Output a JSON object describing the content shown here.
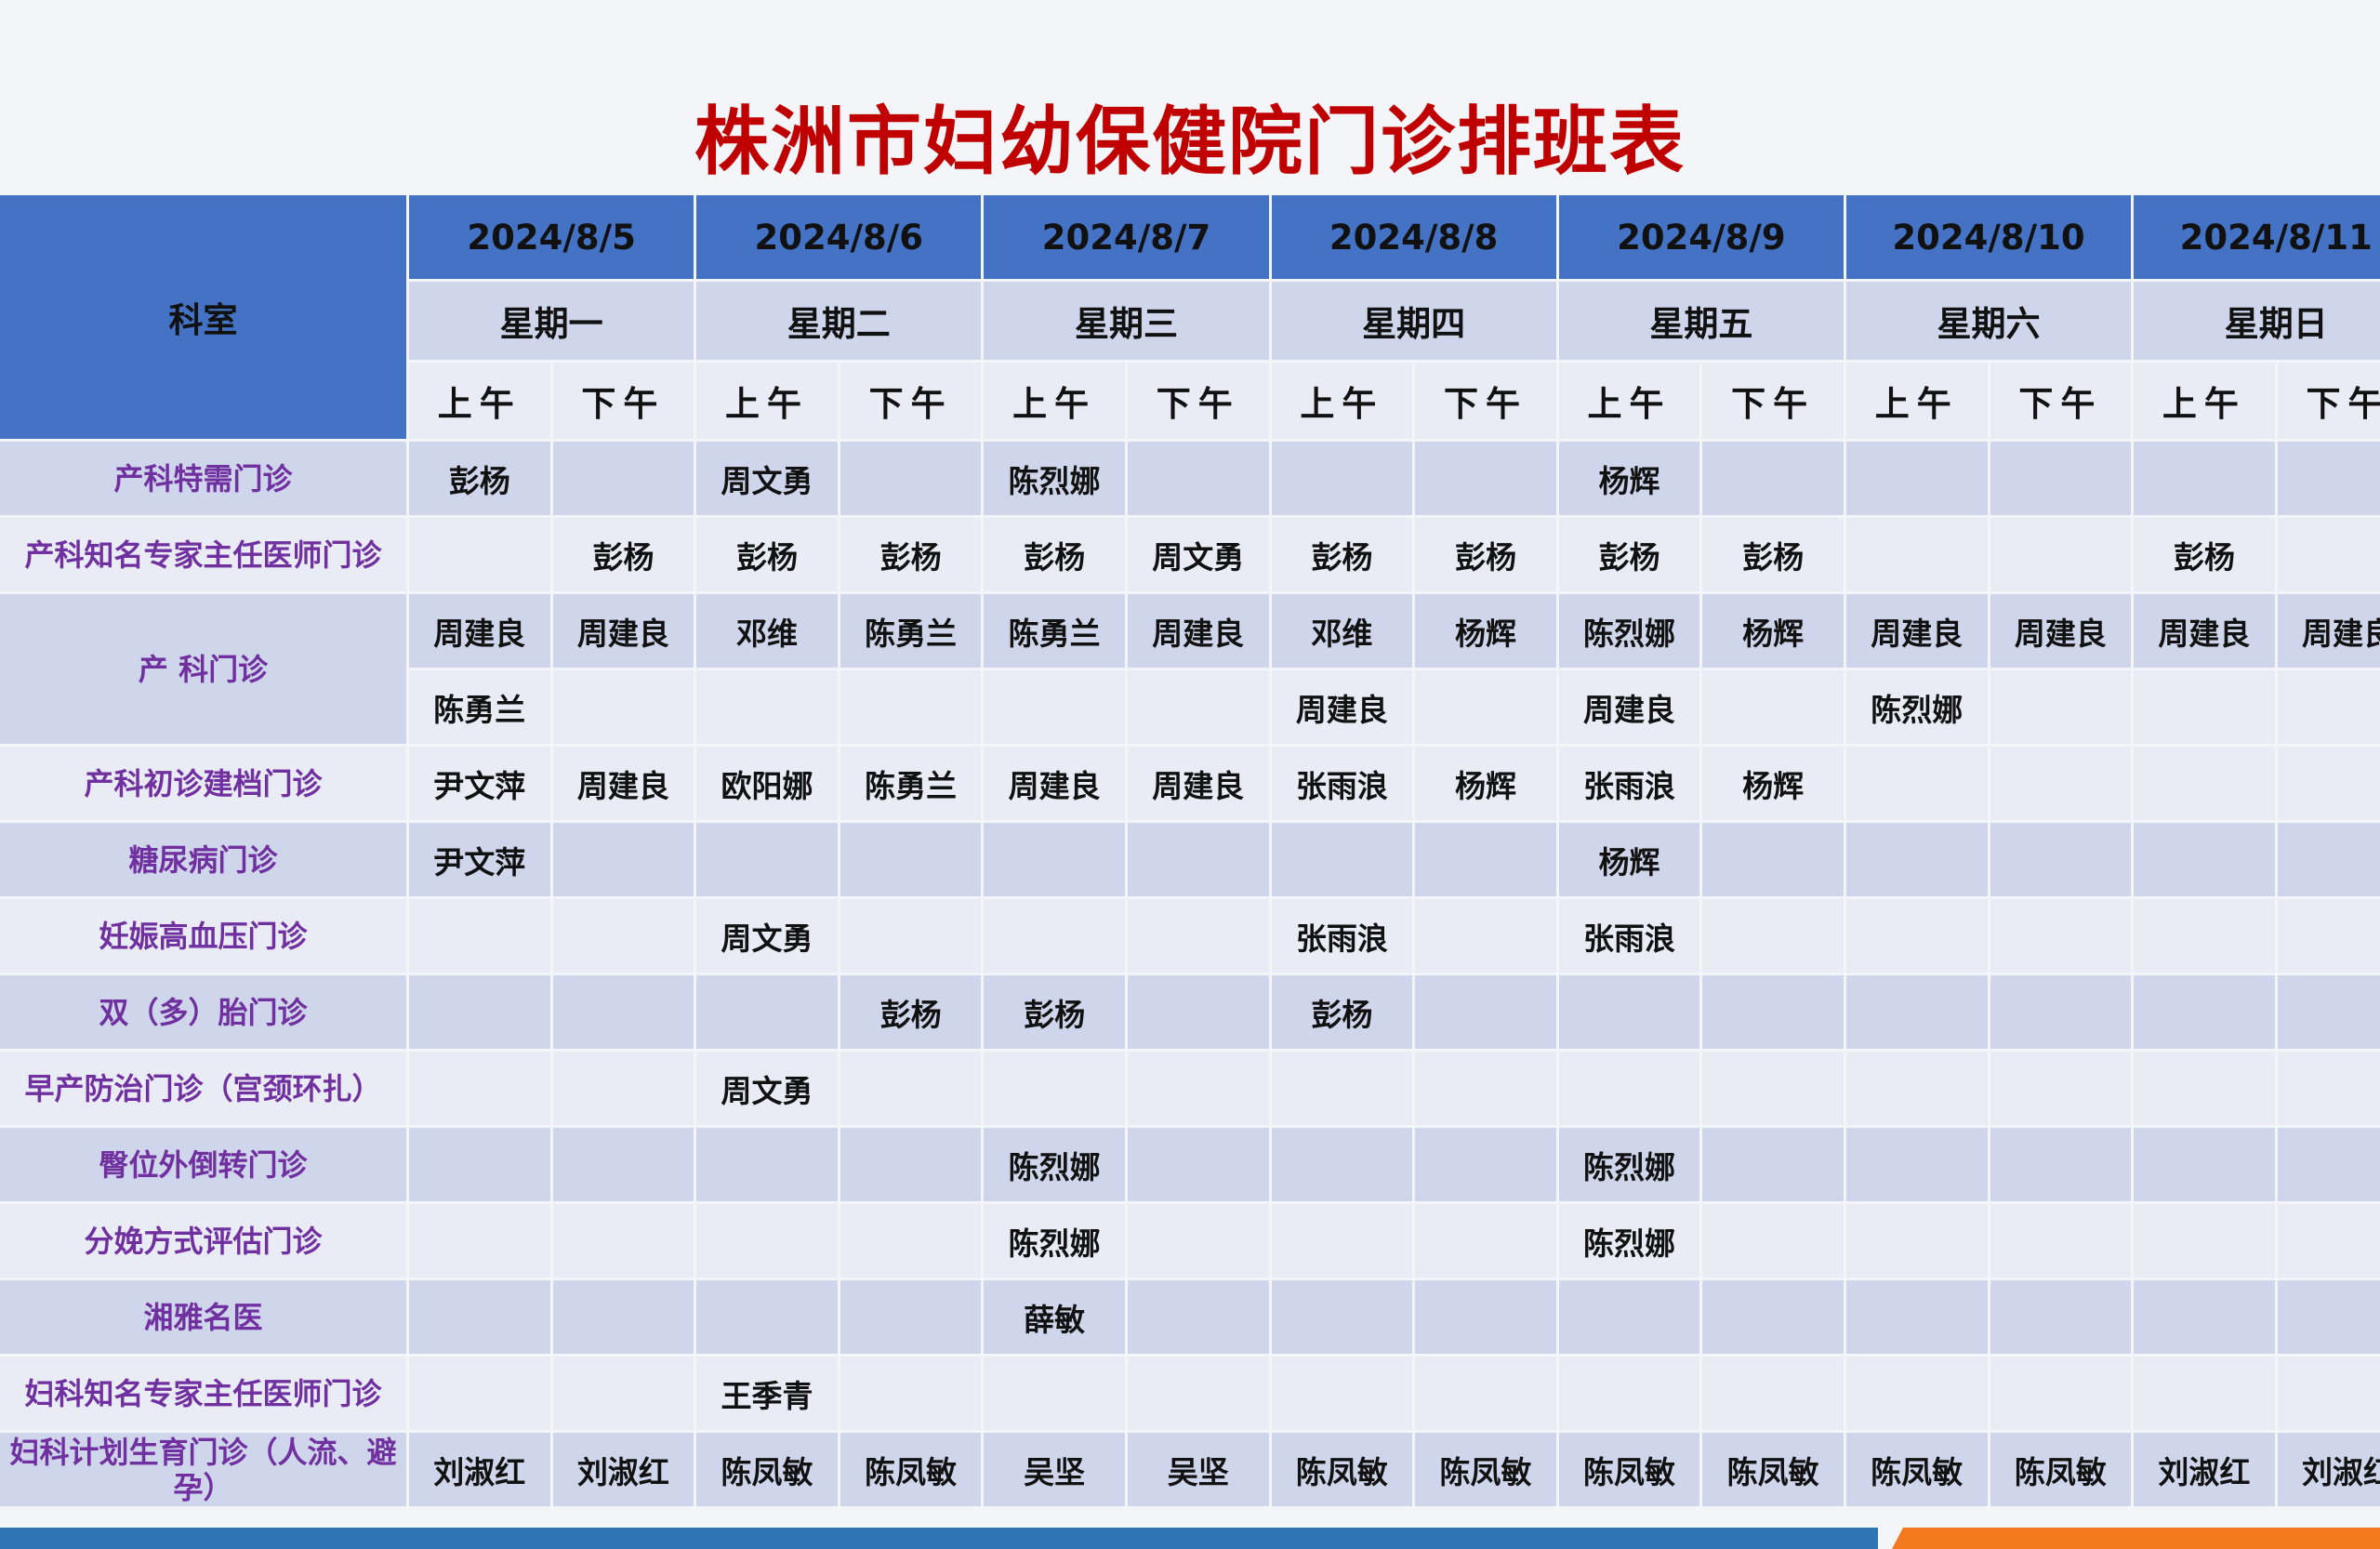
{
  "title": "株洲市妇幼保健院门诊排班表",
  "header": {
    "dept_label": "科室",
    "dates": [
      "2024/8/5",
      "2024/8/6",
      "2024/8/7",
      "2024/8/8",
      "2024/8/9",
      "2024/8/10",
      "2024/8/11"
    ],
    "weekdays": [
      "星期一",
      "星期二",
      "星期三",
      "星期四",
      "星期五",
      "星期六",
      "星期日"
    ],
    "am": "上午",
    "pm": "下午"
  },
  "rows": [
    {
      "dept": "产科特需门诊",
      "lines": [
        [
          "彭杨",
          "",
          "周文勇",
          "",
          "陈烈娜",
          "",
          "",
          "",
          "杨辉",
          "",
          "",
          "",
          "",
          ""
        ]
      ]
    },
    {
      "dept": "产科知名专家主任医师门诊",
      "lines": [
        [
          "",
          "彭杨",
          "彭杨",
          "彭杨",
          "彭杨",
          "周文勇",
          "彭杨",
          "彭杨",
          "彭杨",
          "彭杨",
          "",
          "",
          "彭杨",
          ""
        ]
      ]
    },
    {
      "dept": "产 科门诊",
      "lines": [
        [
          "周建良",
          "周建良",
          "邓维",
          "陈勇兰",
          "陈勇兰",
          "周建良",
          "邓维",
          "杨辉",
          "陈烈娜",
          "杨辉",
          "周建良",
          "周建良",
          "周建良",
          "周建良"
        ],
        [
          "陈勇兰",
          "",
          "",
          "",
          "",
          "",
          "周建良",
          "",
          "周建良",
          "",
          "陈烈娜",
          "",
          "",
          ""
        ]
      ]
    },
    {
      "dept": "产科初诊建档门诊",
      "lines": [
        [
          "尹文萍",
          "周建良",
          "欧阳娜",
          "陈勇兰",
          "周建良",
          "周建良",
          "张雨浪",
          "杨辉",
          "张雨浪",
          "杨辉",
          "",
          "",
          "",
          ""
        ]
      ]
    },
    {
      "dept": "糖尿病门诊",
      "lines": [
        [
          "尹文萍",
          "",
          "",
          "",
          "",
          "",
          "",
          "",
          "杨辉",
          "",
          "",
          "",
          "",
          ""
        ]
      ]
    },
    {
      "dept": "妊娠高血压门诊",
      "lines": [
        [
          "",
          "",
          "周文勇",
          "",
          "",
          "",
          "张雨浪",
          "",
          "张雨浪",
          "",
          "",
          "",
          "",
          ""
        ]
      ]
    },
    {
      "dept": "双（多）胎门诊",
      "lines": [
        [
          "",
          "",
          "",
          "彭杨",
          "彭杨",
          "",
          "彭杨",
          "",
          "",
          "",
          "",
          "",
          "",
          ""
        ]
      ]
    },
    {
      "dept": "早产防治门诊（宫颈环扎）",
      "lines": [
        [
          "",
          "",
          "周文勇",
          "",
          "",
          "",
          "",
          "",
          "",
          "",
          "",
          "",
          "",
          ""
        ]
      ]
    },
    {
      "dept": "臀位外倒转门诊",
      "lines": [
        [
          "",
          "",
          "",
          "",
          "陈烈娜",
          "",
          "",
          "",
          "陈烈娜",
          "",
          "",
          "",
          "",
          ""
        ]
      ]
    },
    {
      "dept": "分娩方式评估门诊",
      "lines": [
        [
          "",
          "",
          "",
          "",
          "陈烈娜",
          "",
          "",
          "",
          "陈烈娜",
          "",
          "",
          "",
          "",
          ""
        ]
      ]
    },
    {
      "dept": "湘雅名医",
      "lines": [
        [
          "",
          "",
          "",
          "",
          "薛敏",
          "",
          "",
          "",
          "",
          "",
          "",
          "",
          "",
          ""
        ]
      ]
    },
    {
      "dept": "妇科知名专家主任医师门诊",
      "lines": [
        [
          "",
          "",
          "王季青",
          "",
          "",
          "",
          "",
          "",
          "",
          "",
          "",
          "",
          "",
          ""
        ]
      ]
    },
    {
      "dept": "妇科计划生育门诊（人流、避孕）",
      "lines": [
        [
          "刘淑红",
          "刘淑红",
          "陈凤敏",
          "陈凤敏",
          "吴坚",
          "吴坚",
          "陈凤敏",
          "陈凤敏",
          "陈凤敏",
          "陈凤敏",
          "陈凤敏",
          "陈凤敏",
          "刘淑红",
          "刘淑红"
        ]
      ]
    }
  ],
  "colors": {
    "title": "#c00000",
    "header_blue": "#4472c4",
    "dept_text": "#7030a0",
    "row_dark": "#cfd5ea",
    "row_light": "#e9ebf5",
    "bar_blue": "#2e75b6",
    "bar_orange": "#f4781e"
  }
}
